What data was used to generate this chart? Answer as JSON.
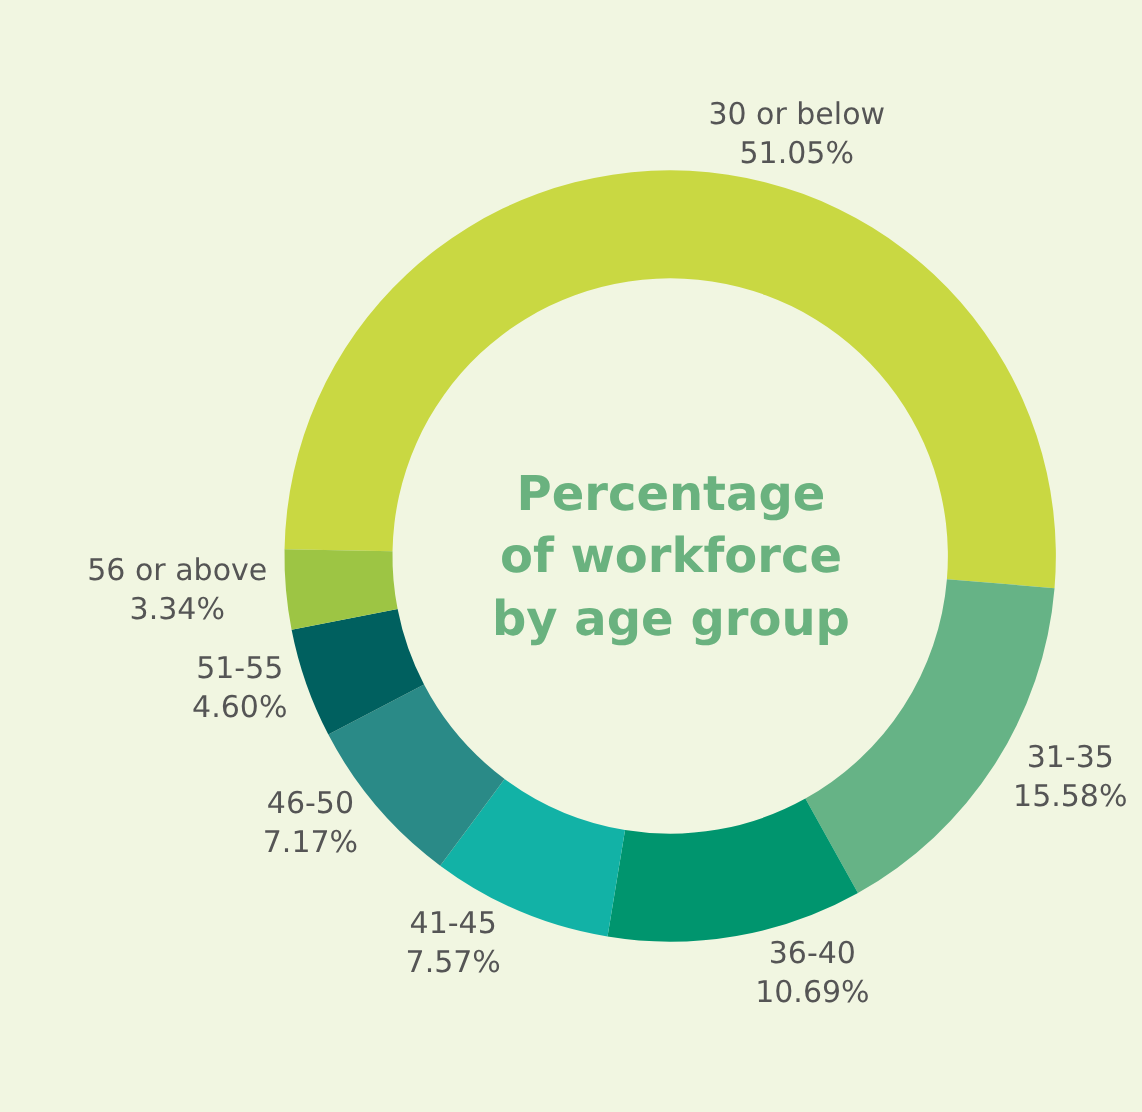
{
  "chart_data": {
    "type": "donut",
    "title": "Percentage of workforce by age group",
    "categories": [
      "30 or below",
      "31-35",
      "36-40",
      "41-45",
      "46-50",
      "51-55",
      "56 or above"
    ],
    "values": [
      51.05,
      15.58,
      10.69,
      7.57,
      7.17,
      4.6,
      3.34
    ],
    "value_labels": [
      "51.05%",
      "15.58%",
      "10.69%",
      "7.57%",
      "7.17%",
      "4.60%",
      "3.34%"
    ],
    "colors": [
      "#c9d842",
      "#66b386",
      "#00956e",
      "#12b2a6",
      "#2a8a87",
      "#00605f",
      "#9dc544"
    ],
    "legend": false
  }
}
